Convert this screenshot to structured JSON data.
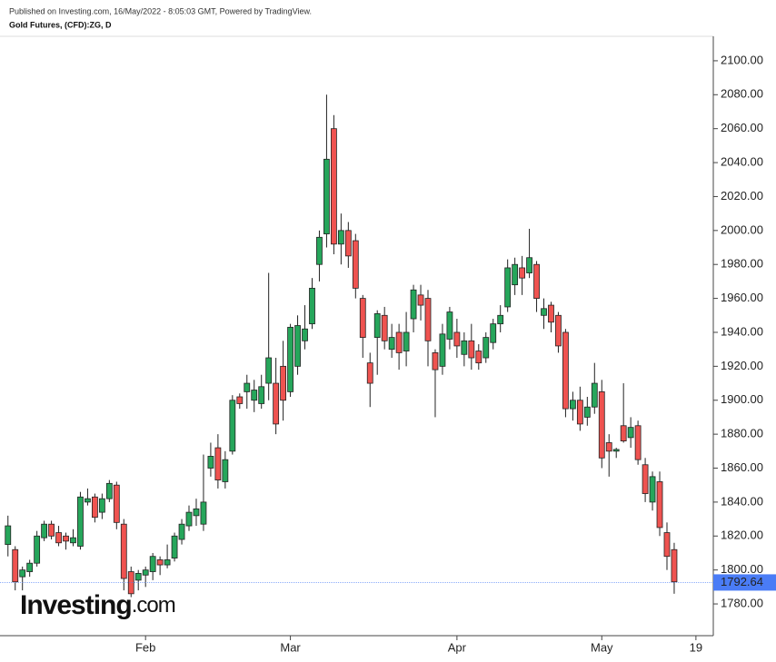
{
  "header": {
    "published": "Published on Investing.com, 16/May/2022 - 8:05:03 GMT, Powered by TradingView.",
    "symbol": "Gold Futures, (CFD):ZG, D"
  },
  "logo": {
    "name": "Investing",
    "suffix": ".com"
  },
  "chart_data": {
    "type": "candlestick",
    "up_color": "#26a65b",
    "down_color": "#ef5350",
    "xlim": [
      -1.1,
      97.4
    ],
    "xticks": [
      {
        "value": 19,
        "label": "Feb"
      },
      {
        "value": 39,
        "label": "Mar"
      },
      {
        "value": 62,
        "label": "Apr"
      },
      {
        "value": 82,
        "label": "May"
      },
      {
        "value": 95,
        "label": "19"
      }
    ],
    "ylim": [
      1761.3,
      2114.4
    ],
    "yticks": [
      {
        "value": 1780,
        "label": "1780.00"
      },
      {
        "value": 1800,
        "label": "1800.00"
      },
      {
        "value": 1820,
        "label": "1820.00"
      },
      {
        "value": 1840,
        "label": "1840.00"
      },
      {
        "value": 1860,
        "label": "1860.00"
      },
      {
        "value": 1880,
        "label": "1880.00"
      },
      {
        "value": 1900,
        "label": "1900.00"
      },
      {
        "value": 1920,
        "label": "1920.00"
      },
      {
        "value": 1940,
        "label": "1940.00"
      },
      {
        "value": 1960,
        "label": "1960.00"
      },
      {
        "value": 1980,
        "label": "1980.00"
      },
      {
        "value": 2000,
        "label": "2000.00"
      },
      {
        "value": 2020,
        "label": "2020.00"
      },
      {
        "value": 2040,
        "label": "2040.00"
      },
      {
        "value": 2060,
        "label": "2060.00"
      },
      {
        "value": 2080,
        "label": "2080.00"
      },
      {
        "value": 2100,
        "label": "2100.00"
      }
    ],
    "last_price": 1792.64,
    "last_price_color": "#4a7cf6",
    "open": [
      1815,
      1812,
      1796,
      1799,
      1804,
      1819,
      1827,
      1822,
      1820,
      1816,
      1814,
      1840,
      1843,
      1834,
      1842,
      1850,
      1827,
      1799,
      1794,
      1797,
      1799,
      1806,
      1803,
      1807,
      1818,
      1826,
      1832,
      1827,
      1860,
      1872,
      1852,
      1870,
      1902,
      1905,
      1900,
      1898,
      1910,
      1910,
      1920,
      1905,
      1920,
      1935,
      1945,
      1980,
      1998,
      2060,
      1992,
      2000,
      1994,
      1960,
      1922,
      1937,
      1950,
      1930,
      1940,
      1929,
      1948,
      1962,
      1960,
      1928,
      1920,
      1936,
      1940,
      1927,
      1935,
      1929,
      1925,
      1934,
      1945,
      1955,
      1968,
      1978,
      1975,
      1980,
      1950,
      1956,
      1950,
      1940,
      1895,
      1900,
      1890,
      1896,
      1905,
      1875,
      1870,
      1885,
      1878,
      1885,
      1862,
      1840,
      1852,
      1822,
      1812
    ],
    "high": [
      1832,
      1814,
      1802,
      1806,
      1823,
      1829,
      1829,
      1826,
      1822,
      1824,
      1846,
      1848,
      1845,
      1845,
      1853,
      1852,
      1830,
      1802,
      1800,
      1802,
      1810,
      1808,
      1815,
      1822,
      1830,
      1838,
      1842,
      1868,
      1875,
      1880,
      1870,
      1903,
      1904,
      1915,
      1912,
      1915,
      1975,
      1925,
      1935,
      1945,
      1950,
      1956,
      1972,
      2000,
      2080,
      2068,
      2010,
      2005,
      1998,
      1962,
      1928,
      1953,
      1955,
      1945,
      1945,
      1952,
      1968,
      1968,
      1965,
      1930,
      1945,
      1955,
      1948,
      1940,
      1945,
      1933,
      1940,
      1948,
      1956,
      1983,
      1984,
      1985,
      2001,
      1982,
      1960,
      1958,
      1952,
      1942,
      1905,
      1908,
      1902,
      1922,
      1912,
      1880,
      1872,
      1910,
      1890,
      1888,
      1866,
      1858,
      1858,
      1828,
      1816
    ],
    "low": [
      1808,
      1788,
      1788,
      1796,
      1802,
      1817,
      1818,
      1814,
      1812,
      1814,
      1812,
      1838,
      1828,
      1830,
      1840,
      1824,
      1788,
      1784,
      1788,
      1790,
      1794,
      1797,
      1801,
      1805,
      1815,
      1823,
      1826,
      1823,
      1855,
      1848,
      1848,
      1868,
      1895,
      1895,
      1893,
      1895,
      1900,
      1880,
      1888,
      1902,
      1915,
      1930,
      1942,
      1970,
      1990,
      1986,
      1980,
      1978,
      1960,
      1925,
      1896,
      1915,
      1930,
      1925,
      1918,
      1920,
      1940,
      1947,
      1920,
      1890,
      1915,
      1930,
      1925,
      1920,
      1918,
      1918,
      1922,
      1930,
      1940,
      1952,
      1962,
      1962,
      1972,
      1952,
      1942,
      1940,
      1928,
      1890,
      1888,
      1882,
      1885,
      1892,
      1860,
      1855,
      1866,
      1875,
      1872,
      1862,
      1840,
      1835,
      1820,
      1800,
      1786
    ],
    "close": [
      1826,
      1793,
      1800,
      1804,
      1820,
      1827,
      1820,
      1816,
      1817,
      1819,
      1843,
      1842,
      1831,
      1842,
      1851,
      1828,
      1795,
      1786,
      1798,
      1800,
      1808,
      1803,
      1806,
      1820,
      1827,
      1834,
      1836,
      1840,
      1867,
      1853,
      1865,
      1900,
      1898,
      1910,
      1906,
      1908,
      1925,
      1886,
      1900,
      1943,
      1944,
      1942,
      1966,
      1996,
      2042,
      1992,
      2000,
      1985,
      1966,
      1937,
      1910,
      1951,
      1935,
      1937,
      1928,
      1940,
      1965,
      1956,
      1935,
      1918,
      1939,
      1952,
      1932,
      1935,
      1925,
      1922,
      1937,
      1945,
      1950,
      1978,
      1980,
      1972,
      1984,
      1960,
      1954,
      1946,
      1932,
      1895,
      1900,
      1886,
      1896,
      1910,
      1866,
      1870,
      1871,
      1876,
      1884,
      1865,
      1845,
      1855,
      1825,
      1808,
      1793
    ]
  }
}
